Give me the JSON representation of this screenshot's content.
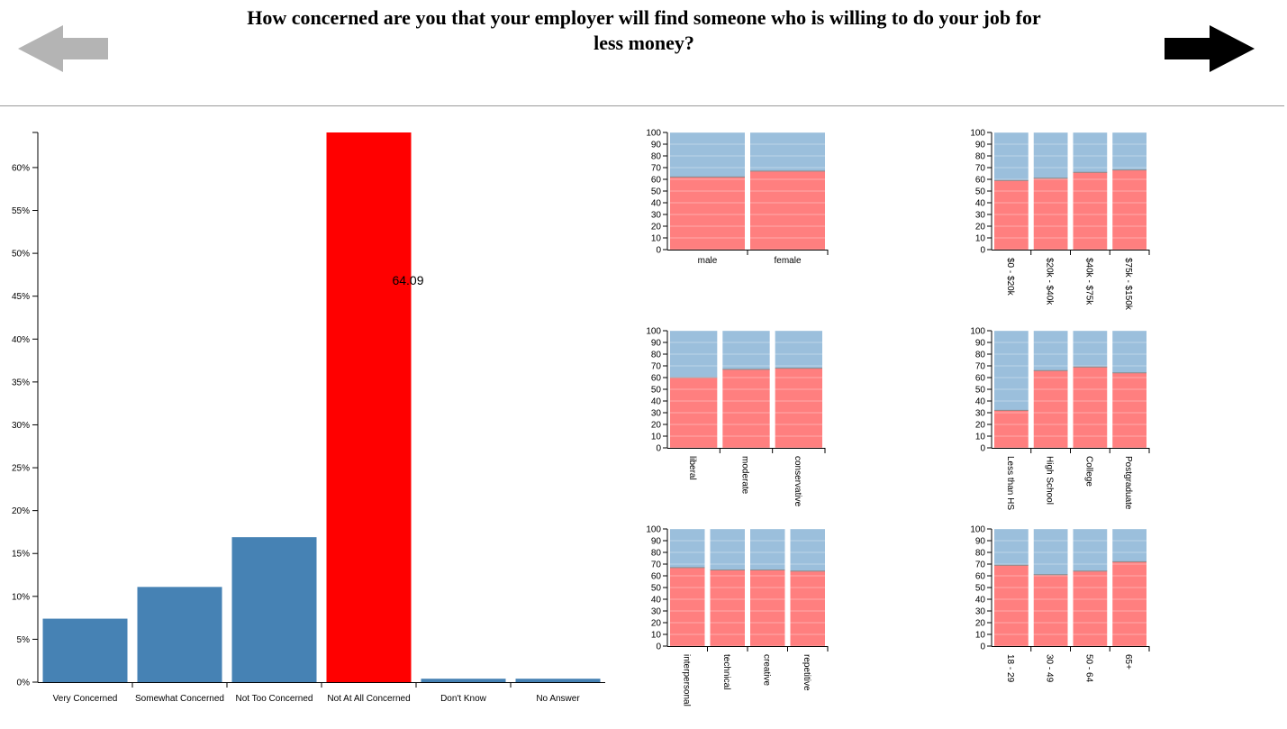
{
  "title": "How concerned are you that your employer will find someone who is willing to do your job for less money?",
  "nav": {
    "prev_icon": "arrow-left-icon",
    "next_icon": "arrow-right-icon"
  },
  "colors": {
    "bar": "#4682b4",
    "highlight": "#ff0000",
    "top": "#9bbfdc",
    "bottom": "#ff7f7f",
    "prev_arrow": "#b4b4b4",
    "next_arrow": "#000000"
  },
  "chart_data": [
    {
      "type": "bar",
      "categories": [
        "Very Concerned",
        "Somewhat Concerned",
        "Not Too Concerned",
        "Not At All Concerned",
        "Don't Know",
        "No Answer"
      ],
      "values": [
        7.4,
        11.1,
        16.9,
        64.09,
        0.4,
        0.4
      ],
      "highlight_index": 3,
      "highlight_label": "64.09",
      "ylim": [
        0,
        64.09
      ],
      "yticks": [
        "0%",
        "5%",
        "10%",
        "15%",
        "20%",
        "25%",
        "30%",
        "35%",
        "40%",
        "45%",
        "50%",
        "55%",
        "60%"
      ],
      "ytick_values": [
        0,
        5,
        10,
        15,
        20,
        25,
        30,
        35,
        40,
        45,
        50,
        55,
        60
      ]
    },
    {
      "type": "bar",
      "stacked": true,
      "categories": [
        "male",
        "female"
      ],
      "values": [
        62,
        67
      ],
      "ylim": [
        0,
        100
      ],
      "rotated_labels": false
    },
    {
      "type": "bar",
      "stacked": true,
      "categories": [
        "$0 - $20k",
        "$20k - $40k",
        "$40k - $75k",
        "$75k - $150k"
      ],
      "values": [
        59,
        61,
        66,
        68
      ],
      "ylim": [
        0,
        100
      ],
      "rotated_labels": true
    },
    {
      "type": "bar",
      "stacked": true,
      "categories": [
        "liberal",
        "moderate",
        "conservative"
      ],
      "values": [
        60,
        67,
        68
      ],
      "ylim": [
        0,
        100
      ],
      "rotated_labels": true
    },
    {
      "type": "bar",
      "stacked": true,
      "categories": [
        "Less than HS",
        "High School",
        "College",
        "Postgraduate"
      ],
      "values": [
        32,
        66,
        69,
        64
      ],
      "ylim": [
        0,
        100
      ],
      "rotated_labels": true
    },
    {
      "type": "bar",
      "stacked": true,
      "categories": [
        "interpersonal",
        "technical",
        "creative",
        "repetitive"
      ],
      "values": [
        67,
        65,
        65,
        64
      ],
      "ylim": [
        0,
        100
      ],
      "rotated_labels": true
    },
    {
      "type": "bar",
      "stacked": true,
      "categories": [
        "18 - 29",
        "30 - 49",
        "50 - 64",
        "65+"
      ],
      "values": [
        69,
        61,
        64,
        72
      ],
      "ylim": [
        0,
        100
      ],
      "rotated_labels": true
    }
  ]
}
